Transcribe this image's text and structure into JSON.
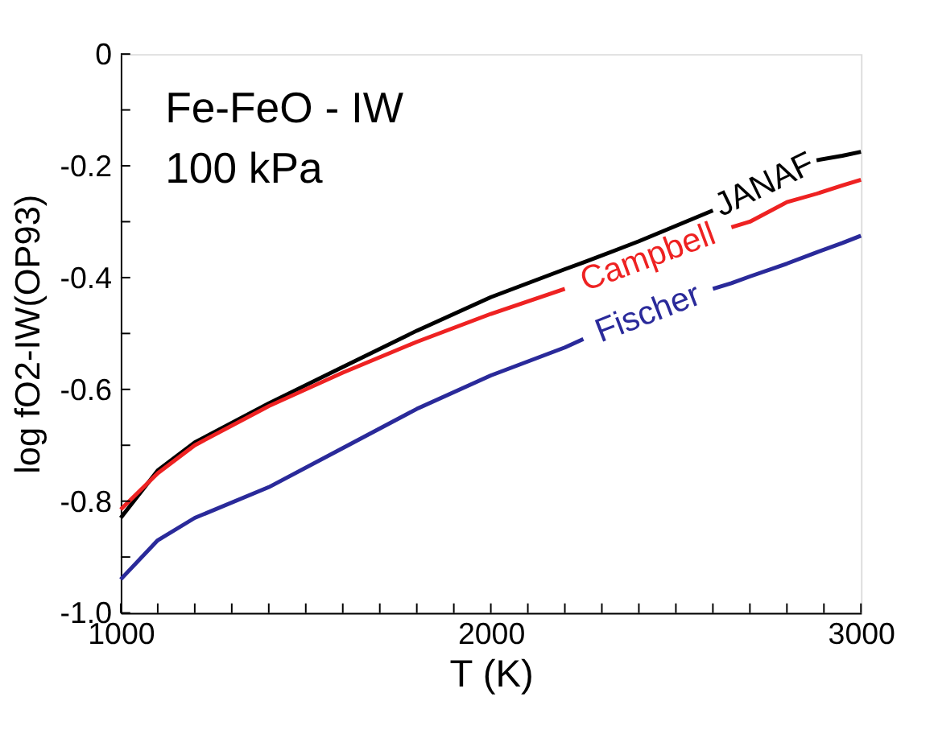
{
  "chart_data": {
    "type": "line",
    "xlabel": "T (K)",
    "ylabel": "log fO2-IW(OP93)",
    "x": [
      1000,
      1100,
      1200,
      1400,
      1600,
      1800,
      2000,
      2200,
      2250,
      2400,
      2600,
      2650,
      2700,
      2800,
      2880,
      2950,
      3000
    ],
    "series": [
      {
        "name": "JANAF",
        "color": "#000000",
        "values": [
          -0.83,
          -0.745,
          -0.695,
          -0.625,
          -0.56,
          -0.495,
          -0.435,
          -0.385,
          -0.373,
          -0.335,
          -0.28,
          null,
          null,
          null,
          -0.19,
          -0.182,
          -0.175
        ]
      },
      {
        "name": "Campbell",
        "color": "#ee2222",
        "values": [
          -0.815,
          -0.75,
          -0.7,
          -0.63,
          -0.57,
          -0.515,
          -0.465,
          -0.42,
          null,
          null,
          null,
          -0.31,
          -0.3,
          -0.265,
          -0.25,
          -0.235,
          -0.225
        ]
      },
      {
        "name": "Fischer",
        "color": "#2a2a9a",
        "values": [
          -0.94,
          -0.87,
          -0.83,
          -0.775,
          -0.705,
          -0.635,
          -0.575,
          -0.525,
          -0.51,
          null,
          -0.42,
          -0.41,
          -0.398,
          -0.375,
          -0.355,
          -0.338,
          -0.325
        ]
      }
    ],
    "xlim": [
      1000,
      3000
    ],
    "ylim": [
      -1.0,
      0
    ],
    "xticks": [
      1000,
      {
        "value": 1100,
        "label": null
      },
      {
        "value": 1200,
        "label": null
      },
      {
        "value": 1300,
        "label": null
      },
      {
        "value": 1400,
        "label": null
      },
      {
        "value": 1500,
        "label": null
      },
      {
        "value": 1600,
        "label": null
      },
      {
        "value": 1700,
        "label": null
      },
      {
        "value": 1800,
        "label": null
      },
      {
        "value": 1900,
        "label": null
      },
      2000,
      {
        "value": 2100,
        "label": null
      },
      {
        "value": 2200,
        "label": null
      },
      {
        "value": 2300,
        "label": null
      },
      {
        "value": 2400,
        "label": null
      },
      {
        "value": 2500,
        "label": null
      },
      {
        "value": 2600,
        "label": null
      },
      {
        "value": 2700,
        "label": null
      },
      {
        "value": 2800,
        "label": null
      },
      {
        "value": 2900,
        "label": null
      },
      3000
    ],
    "yticks": [
      {
        "value": -1.0,
        "label": "-1.0"
      },
      {
        "value": -0.9,
        "label": null
      },
      {
        "value": -0.8,
        "label": "-0.8"
      },
      {
        "value": -0.7,
        "label": null
      },
      {
        "value": -0.6,
        "label": "-0.6"
      },
      {
        "value": -0.5,
        "label": null
      },
      {
        "value": -0.4,
        "label": "-0.4"
      },
      {
        "value": -0.3,
        "label": null
      },
      {
        "value": -0.2,
        "label": "-0.2"
      },
      {
        "value": -0.1,
        "label": null
      },
      0
    ],
    "annotations": [
      "Fe-FeO -  IW",
      "100 kPa"
    ],
    "grid": false,
    "legend": false,
    "line_style": "solid",
    "marker": "none"
  }
}
